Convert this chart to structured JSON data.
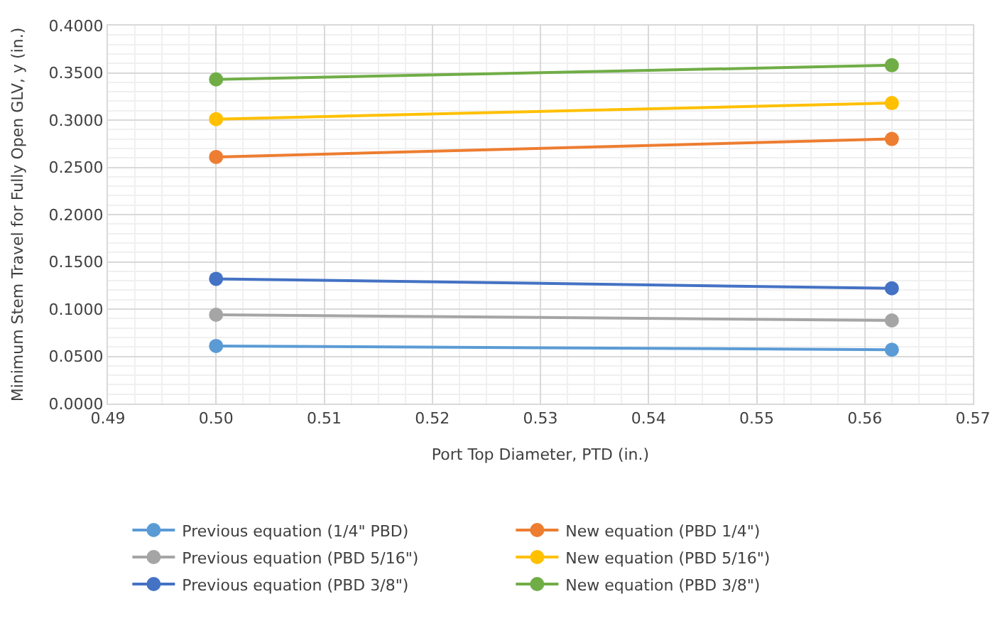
{
  "chart_data": {
    "type": "line",
    "xlabel": "Port Top Diameter, PTD (in.)",
    "ylabel": "Minimum Stem Travel for Fully Open GLV, y (in.)",
    "x": [
      0.5,
      0.5625
    ],
    "series": [
      {
        "name": "Previous equation (1/4\" PBD)",
        "color": "#5b9bd5",
        "values": [
          0.061,
          0.057
        ]
      },
      {
        "name": "New equation (PBD 1/4\")",
        "color": "#ed7d31",
        "values": [
          0.261,
          0.28
        ]
      },
      {
        "name": "Previous equation (PBD 5/16\")",
        "color": "#a5a5a5",
        "values": [
          0.094,
          0.088
        ]
      },
      {
        "name": "New equation (PBD 5/16\")",
        "color": "#ffc000",
        "values": [
          0.301,
          0.318
        ]
      },
      {
        "name": "Previous equation (PBD 3/8\")",
        "color": "#4472c4",
        "values": [
          0.132,
          0.122
        ]
      },
      {
        "name": "New equation (PBD 3/8\")",
        "color": "#70ad47",
        "values": [
          0.343,
          0.358
        ]
      }
    ],
    "xlim": [
      0.49,
      0.57
    ],
    "xticks": [
      0.49,
      {
        "value": 0.5,
        "label": "0.50"
      },
      0.51,
      0.52,
      0.53,
      0.54,
      0.55,
      0.56,
      0.57
    ],
    "ylim": [
      0,
      0.4
    ],
    "yticks": [
      {
        "value": 0,
        "label": "0.0000"
      },
      {
        "value": 0.05,
        "label": "0.0500"
      },
      {
        "value": 0.1,
        "label": "0.1000"
      },
      {
        "value": 0.15,
        "label": "0.1500"
      },
      {
        "value": 0.2,
        "label": "0.2000"
      },
      {
        "value": 0.25,
        "label": "0.2500"
      },
      {
        "value": 0.3,
        "label": "0.3000"
      },
      {
        "value": 0.35,
        "label": "0.3500"
      },
      {
        "value": 0.4,
        "label": "0.4000"
      }
    ],
    "grid": true,
    "legend": "bottom",
    "marker": "circle",
    "line_style": "solid"
  }
}
